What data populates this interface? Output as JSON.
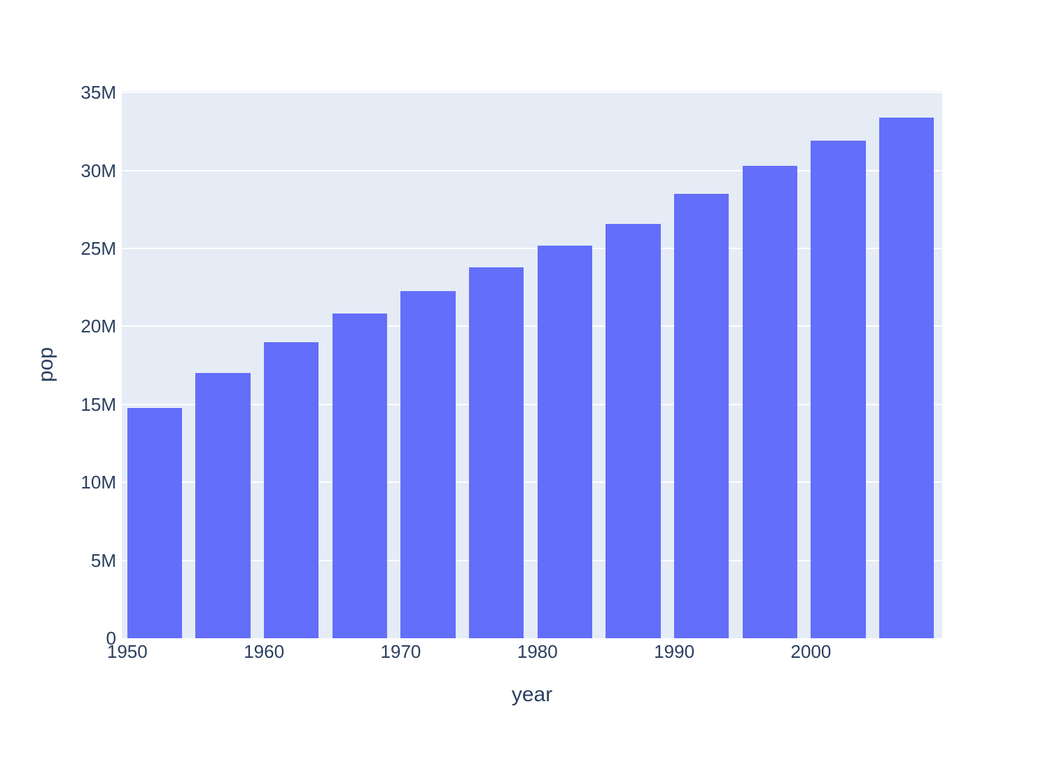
{
  "chart_data": {
    "type": "bar",
    "title": "",
    "xlabel": "year",
    "ylabel": "pop",
    "x": [
      1952,
      1957,
      1962,
      1967,
      1972,
      1977,
      1982,
      1987,
      1992,
      1997,
      2002,
      2007
    ],
    "values": [
      14785584,
      17010154,
      18985849,
      20819767,
      22284500,
      23796400,
      25201900,
      26549700,
      28523502,
      30305843,
      31902268,
      33390141
    ],
    "series_name": "pop",
    "bar_width_x_units": 4,
    "xlim": [
      1949.6,
      2009.6
    ],
    "ylim": [
      0,
      35100000
    ],
    "xticks": {
      "values": [
        1950,
        1960,
        1970,
        1980,
        1990,
        2000
      ],
      "labels": [
        "1950",
        "1960",
        "1970",
        "1980",
        "1990",
        "2000"
      ]
    },
    "yticks": {
      "values": [
        0,
        5000000,
        10000000,
        15000000,
        20000000,
        25000000,
        30000000,
        35000000
      ],
      "labels": [
        "0",
        "5M",
        "10M",
        "15M",
        "20M",
        "25M",
        "30M",
        "35M"
      ]
    },
    "grid": "horizontal",
    "legend": "none",
    "colors": {
      "bar": "#636EFA",
      "plot_bg": "#E5ECF6",
      "paper_bg": "#ffffff",
      "grid": "#ffffff",
      "text": "#2a3f5f"
    }
  }
}
